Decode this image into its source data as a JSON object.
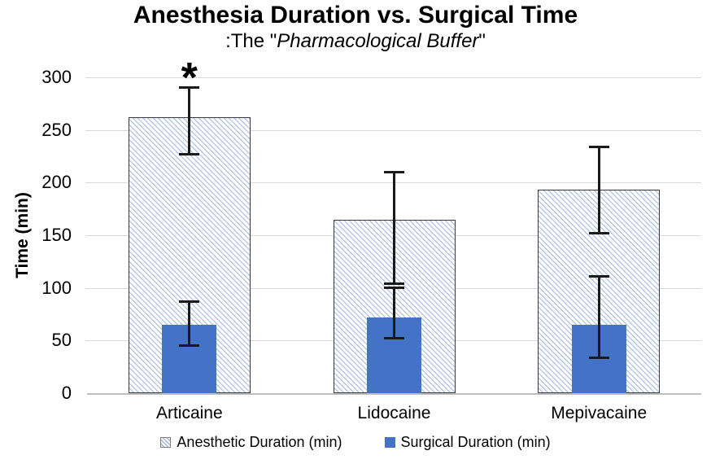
{
  "chart_data": {
    "type": "bar",
    "title": "Anesthesia Duration vs. Surgical Time",
    "subtitle_prefix": ":The \"",
    "subtitle_italic": "Pharmacological Buffer",
    "subtitle_suffix": "\"",
    "ylabel": "Time (min)",
    "ylim": [
      0,
      300
    ],
    "yticks": [
      0,
      50,
      100,
      150,
      200,
      250,
      300
    ],
    "grid": true,
    "legend_position": "bottom",
    "categories": [
      "Articaine",
      "Lidocaine",
      "Mepivacaine"
    ],
    "series": [
      {
        "name": "Anesthetic Duration (min)",
        "style": "hatched",
        "values": [
          262,
          165,
          193
        ],
        "error_low": [
          227,
          104,
          152
        ],
        "error_high": [
          290,
          210,
          234
        ]
      },
      {
        "name": "Surgical Duration (min)",
        "style": "solid",
        "values": [
          65,
          72,
          65
        ],
        "error_low": [
          45,
          52,
          34
        ],
        "error_high": [
          87,
          100,
          111
        ]
      }
    ],
    "annotations": [
      {
        "text": "*",
        "category": "Articaine",
        "series": "Anesthetic Duration (min)"
      }
    ],
    "colors": {
      "solid_fill": "#4472C4",
      "hatch_line": "#b6c8ea",
      "bar_border": "#383838",
      "gridline": "#d9d9d9",
      "axis_line": "#bfbfbf",
      "error_bar": "#1a1a1a",
      "text": "#000000"
    }
  }
}
